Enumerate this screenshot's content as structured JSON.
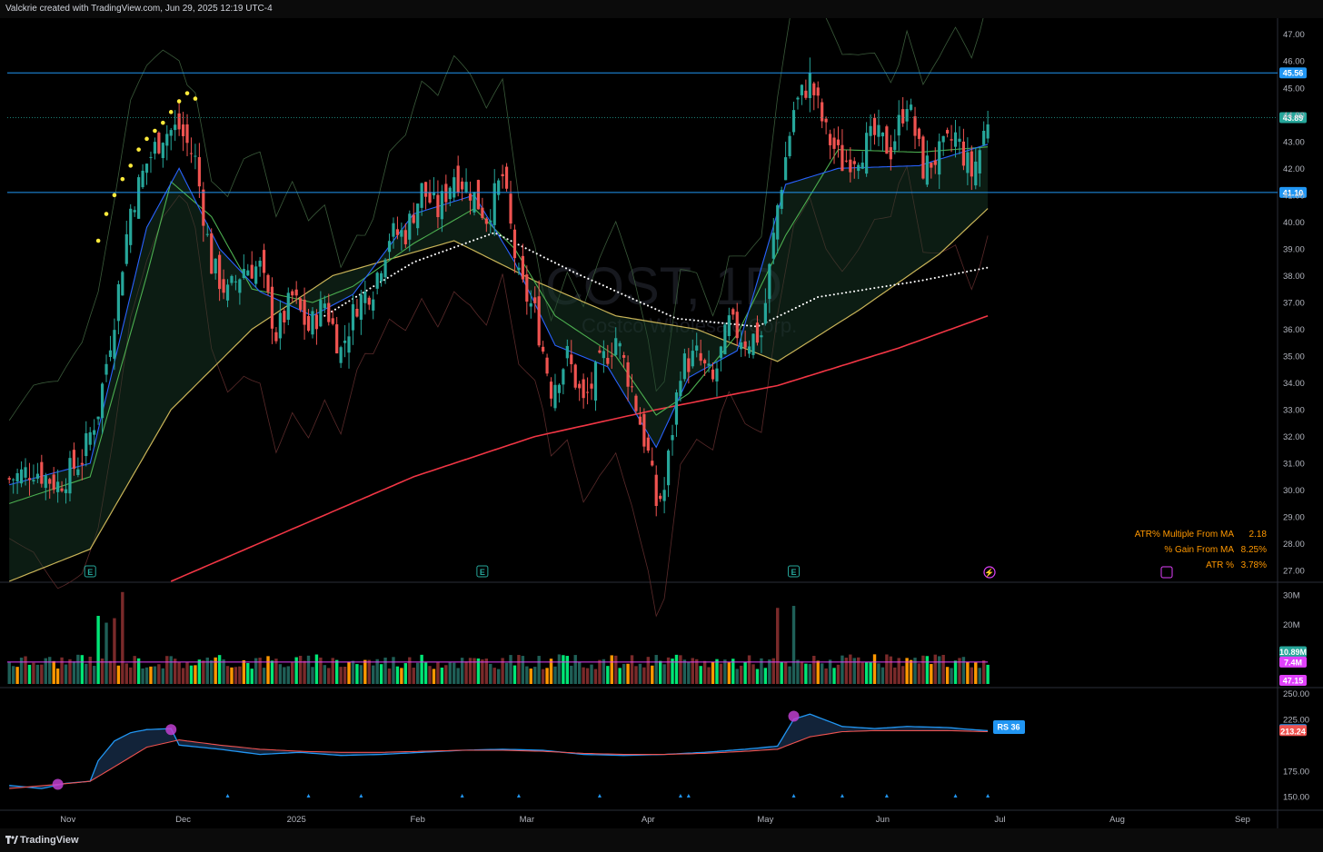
{
  "header": {
    "caption": "Valckrie created with TradingView.com, Jun 29, 2025 12:19 UTC-4"
  },
  "footer": {
    "brand": "TradingView"
  },
  "watermark": {
    "symbol": "COST, 1D",
    "name": "Costco Wholesale Corp."
  },
  "colors": {
    "up": "#26a69a",
    "down": "#ef5350",
    "level": "#2196f3",
    "ma200": "#f23645",
    "ma50": "#c9b458",
    "ema21": "#4caf50",
    "ema10": "#2962ff",
    "dots": "#ffffff",
    "rs": "#2196f3",
    "rsma": "#e040fb",
    "vol_orange": "#ff9800",
    "vol_green": "#00e676"
  },
  "chart_data": [
    {
      "type": "candlestick",
      "panel": "price",
      "x_labels": [
        "Nov",
        "Dec",
        "2025",
        "Feb",
        "Mar",
        "Apr",
        "May",
        "Jun",
        "Jul",
        "Aug",
        "Sep"
      ],
      "y_ticks": [
        "47.00",
        "46.00",
        "45.00",
        "44.00",
        "43.00",
        "42.00",
        "41.00",
        "40.00",
        "39.00",
        "38.00",
        "37.00",
        "36.00",
        "35.00",
        "34.00",
        "33.00",
        "32.00",
        "31.00",
        "30.00",
        "29.00",
        "28.00",
        "27.00"
      ],
      "ylim": [
        26.6,
        47.6
      ],
      "levels": [
        {
          "value": 45.56,
          "label": "45.56"
        },
        {
          "value": 41.1,
          "label": "41.10"
        }
      ],
      "last_price": {
        "value": 43.89,
        "label": "43.89"
      },
      "close_path": [
        [
          0,
          30.4
        ],
        [
          6,
          30.8
        ],
        [
          12,
          30.2
        ],
        [
          18,
          31.2
        ],
        [
          22,
          33.0
        ],
        [
          26,
          36.5
        ],
        [
          30,
          40.5
        ],
        [
          34,
          42.2
        ],
        [
          38,
          43.3
        ],
        [
          42,
          43.5
        ],
        [
          46,
          42.3
        ],
        [
          50,
          38.4
        ],
        [
          54,
          37.3
        ],
        [
          58,
          38.3
        ],
        [
          62,
          38.3
        ],
        [
          66,
          35.8
        ],
        [
          70,
          37.2
        ],
        [
          74,
          36.0
        ],
        [
          78,
          37.0
        ],
        [
          82,
          35.2
        ],
        [
          86,
          37.0
        ],
        [
          90,
          37.6
        ],
        [
          94,
          39.5
        ],
        [
          98,
          39.6
        ],
        [
          102,
          41.2
        ],
        [
          106,
          40.4
        ],
        [
          110,
          41.8
        ],
        [
          114,
          41.2
        ],
        [
          118,
          40.2
        ],
        [
          122,
          41.7
        ],
        [
          126,
          37.8
        ],
        [
          130,
          36.6
        ],
        [
          134,
          33.8
        ],
        [
          138,
          35.0
        ],
        [
          142,
          33.2
        ],
        [
          146,
          34.6
        ],
        [
          150,
          35.7
        ],
        [
          154,
          33.8
        ],
        [
          158,
          31.3
        ],
        [
          160,
          29.5
        ],
        [
          162,
          30.0
        ],
        [
          166,
          34.6
        ],
        [
          170,
          35.0
        ],
        [
          174,
          34.0
        ],
        [
          178,
          36.2
        ],
        [
          182,
          35.6
        ],
        [
          186,
          35.8
        ],
        [
          190,
          40.6
        ],
        [
          194,
          44.2
        ],
        [
          198,
          45.3
        ],
        [
          202,
          43.3
        ],
        [
          206,
          42.2
        ],
        [
          210,
          42.6
        ],
        [
          214,
          43.2
        ],
        [
          218,
          42.7
        ],
        [
          222,
          44.6
        ],
        [
          226,
          42.0
        ],
        [
          230,
          42.5
        ],
        [
          234,
          43.2
        ],
        [
          238,
          41.8
        ],
        [
          240,
          42.7
        ],
        [
          242,
          43.89
        ]
      ],
      "moving_averages": [
        {
          "name": "200",
          "path": [
            [
              40,
              26.6
            ],
            [
              100,
              30.5
            ],
            [
              130,
              32.0
            ],
            [
              160,
              33.0
            ],
            [
              190,
              33.9
            ],
            [
              220,
              35.3
            ],
            [
              242,
              36.5
            ]
          ]
        },
        {
          "name": "50",
          "path": [
            [
              0,
              26.6
            ],
            [
              20,
              27.8
            ],
            [
              40,
              33.0
            ],
            [
              60,
              36.0
            ],
            [
              80,
              38.0
            ],
            [
              110,
              39.3
            ],
            [
              130,
              37.8
            ],
            [
              150,
              36.5
            ],
            [
              170,
              36.0
            ],
            [
              190,
              34.8
            ],
            [
              210,
              36.7
            ],
            [
              230,
              38.8
            ],
            [
              242,
              40.5
            ]
          ]
        },
        {
          "name": "21",
          "path": [
            [
              0,
              29.5
            ],
            [
              20,
              30.5
            ],
            [
              34,
              38.0
            ],
            [
              40,
              41.5
            ],
            [
              50,
              40.2
            ],
            [
              60,
              37.5
            ],
            [
              75,
              37.0
            ],
            [
              85,
              37.6
            ],
            [
              100,
              39.2
            ],
            [
              115,
              40.5
            ],
            [
              125,
              39.0
            ],
            [
              135,
              36.5
            ],
            [
              150,
              35.0
            ],
            [
              160,
              32.8
            ],
            [
              168,
              33.6
            ],
            [
              180,
              35.8
            ],
            [
              192,
              39.5
            ],
            [
              205,
              42.7
            ],
            [
              225,
              42.6
            ],
            [
              242,
              42.8
            ]
          ]
        },
        {
          "name": "10",
          "path": [
            [
              0,
              30.2
            ],
            [
              20,
              31.0
            ],
            [
              34,
              39.8
            ],
            [
              42,
              42.0
            ],
            [
              52,
              39.0
            ],
            [
              62,
              37.4
            ],
            [
              75,
              36.5
            ],
            [
              85,
              37.3
            ],
            [
              100,
              40.3
            ],
            [
              115,
              41.0
            ],
            [
              125,
              38.5
            ],
            [
              135,
              35.4
            ],
            [
              148,
              34.6
            ],
            [
              160,
              31.6
            ],
            [
              168,
              34.2
            ],
            [
              180,
              35.2
            ],
            [
              192,
              41.4
            ],
            [
              205,
              42.0
            ],
            [
              225,
              42.1
            ],
            [
              242,
              42.9
            ]
          ]
        },
        {
          "name": "dotted",
          "path": [
            [
              78,
              36.5
            ],
            [
              100,
              38.5
            ],
            [
              120,
              39.6
            ],
            [
              140,
              38.1
            ],
            [
              165,
              36.4
            ],
            [
              185,
              36.1
            ],
            [
              200,
              37.2
            ],
            [
              225,
              37.8
            ],
            [
              242,
              38.3
            ]
          ]
        }
      ],
      "stats": [
        {
          "label": "ATR% Multiple From MA",
          "value": "2.18"
        },
        {
          "label": "% Gain From MA",
          "value": "8.25%"
        },
        {
          "label": "ATR %",
          "value": "3.78%"
        }
      ]
    },
    {
      "type": "bar",
      "panel": "volume",
      "y_ticks": [
        "30M",
        "20M"
      ],
      "ylim": [
        0,
        34
      ],
      "labels": [
        {
          "value": "10.89M"
        },
        {
          "value": "7.4M"
        },
        {
          "value": "47.15"
        }
      ]
    },
    {
      "type": "line",
      "panel": "relative_strength",
      "y_ticks": [
        "250.00",
        "225.00",
        "175.00",
        "150.00"
      ],
      "ylim": [
        137,
        253
      ],
      "labels": [
        {
          "value": "RS 36"
        },
        {
          "value": "214.13"
        },
        {
          "value": "213.24"
        }
      ],
      "series": [
        {
          "path": [
            [
              0,
              161
            ],
            [
              8,
              158
            ],
            [
              14,
              163
            ],
            [
              20,
              165
            ],
            [
              22,
              185
            ],
            [
              26,
              204
            ],
            [
              30,
              212
            ],
            [
              34,
              215
            ],
            [
              40,
              216
            ],
            [
              42,
              200
            ],
            [
              52,
              196
            ],
            [
              62,
              191
            ],
            [
              72,
              193
            ],
            [
              82,
              190
            ],
            [
              92,
              191
            ],
            [
              102,
              193
            ],
            [
              112,
              195
            ],
            [
              122,
              196
            ],
            [
              132,
              195
            ],
            [
              142,
              191
            ],
            [
              152,
              190
            ],
            [
              162,
              191
            ],
            [
              172,
              193
            ],
            [
              182,
              196
            ],
            [
              190,
              199
            ],
            [
              194,
              225
            ],
            [
              198,
              230
            ],
            [
              206,
              218
            ],
            [
              214,
              216
            ],
            [
              222,
              218
            ],
            [
              232,
              217
            ],
            [
              238,
              215
            ],
            [
              242,
              214
            ]
          ]
        },
        {
          "path": [
            [
              0,
              158
            ],
            [
              12,
              162
            ],
            [
              20,
              165
            ],
            [
              26,
              179
            ],
            [
              34,
              198
            ],
            [
              42,
              205
            ],
            [
              52,
              200
            ],
            [
              62,
              196
            ],
            [
              72,
              194
            ],
            [
              82,
              193
            ],
            [
              92,
              193
            ],
            [
              102,
              194
            ],
            [
              112,
              195
            ],
            [
              122,
              195
            ],
            [
              132,
              194
            ],
            [
              142,
              192
            ],
            [
              152,
              191
            ],
            [
              162,
              191
            ],
            [
              172,
              192
            ],
            [
              182,
              194
            ],
            [
              190,
              196
            ],
            [
              198,
              208
            ],
            [
              206,
              213
            ],
            [
              214,
              214
            ],
            [
              222,
              214
            ],
            [
              232,
              214
            ],
            [
              242,
              213
            ]
          ]
        }
      ]
    }
  ]
}
